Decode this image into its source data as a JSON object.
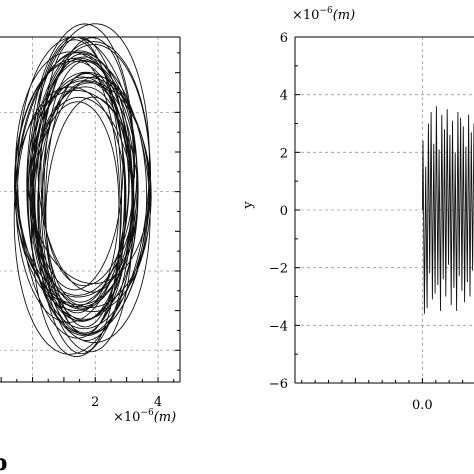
{
  "chart_data": [
    {
      "type": "line",
      "subtype": "phase-portrait",
      "title": "",
      "xlabel": "",
      "ylabel": "",
      "x_unit_prefix": "×10",
      "x_unit_exp": "−6",
      "x_unit": "(m)",
      "xlim": [
        -1.1,
        4.7
      ],
      "ylim": [
        -4.8,
        3.9
      ],
      "x_ticks": [
        2,
        4
      ],
      "x_tick_labels": [
        "2",
        "4"
      ],
      "grid": true,
      "orbit": {
        "center_x": 1.6,
        "center_y": 0.0,
        "radius_x_range": [
          1.3,
          2.0
        ],
        "radius_y_range": [
          2.6,
          3.9
        ],
        "loops": 34
      },
      "panel_label": "b"
    },
    {
      "type": "line",
      "title": "",
      "xlabel": "",
      "ylabel": "y",
      "y_unit_prefix": "×10",
      "y_unit_exp": "−6",
      "y_unit": "(m)",
      "xlim": [
        -0.95,
        0.4
      ],
      "ylim": [
        -6,
        6
      ],
      "y_ticks": [
        -6,
        -4,
        -2,
        0,
        2,
        4,
        6
      ],
      "y_tick_labels": [
        "−6",
        "−4",
        "−2",
        "0",
        "2",
        "4",
        "6"
      ],
      "x_ticks": [
        0.0
      ],
      "x_tick_labels": [
        "0.0"
      ],
      "grid": true,
      "signal": {
        "x_start": 0.0,
        "x_end": 0.4,
        "cycles": 20,
        "peaks": [
          2.4,
          -3.6,
          1.5,
          -3.4,
          3.0,
          -2.2,
          3.4,
          -3.1,
          2.3,
          -2.9,
          3.6,
          -2.6,
          2.1,
          -3.5,
          3.3,
          -2.4,
          2.8,
          -3.0,
          3.5,
          -1.9,
          2.6,
          -3.3,
          3.1,
          -2.7,
          2.0,
          -3.5,
          3.4,
          -2.3,
          3.2,
          -2.8,
          2.9,
          -3.2,
          2.2,
          -2.5,
          3.3,
          -3.0,
          2.7,
          -2.1,
          3.0,
          -3.4
        ]
      }
    }
  ]
}
